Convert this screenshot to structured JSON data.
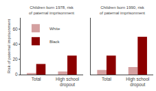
{
  "chart_data": [
    {
      "type": "bar",
      "title": "Children born 1978, risk of paternal imprisonment",
      "ylabel": "Risk of paternal imprisonment",
      "categories": [
        "Total",
        "High school dropout"
      ],
      "series": [
        {
          "name": "White",
          "color": "#d4a0a0",
          "values": [
            2,
            4
          ]
        },
        {
          "name": "Black",
          "color": "#8b0000",
          "values": [
            14,
            25
          ]
        }
      ],
      "ylim": [
        0,
        75
      ],
      "yticks": [
        0,
        20,
        40,
        60
      ],
      "grid": false,
      "legend": "upper left"
    },
    {
      "type": "bar",
      "title": "Children born 1990, risk of paternal imprisonment",
      "categories": [
        "Total",
        "High school dropout"
      ],
      "series": [
        {
          "name": "White",
          "color": "#d4a0a0",
          "values": [
            6,
            10
          ]
        },
        {
          "name": "Black",
          "color": "#8b0000",
          "values": [
            25,
            50
          ]
        }
      ],
      "ylim": [
        0,
        75
      ],
      "yticks": [
        0,
        20,
        40,
        60
      ],
      "grid": false,
      "tick_labels": "x"
    }
  ]
}
